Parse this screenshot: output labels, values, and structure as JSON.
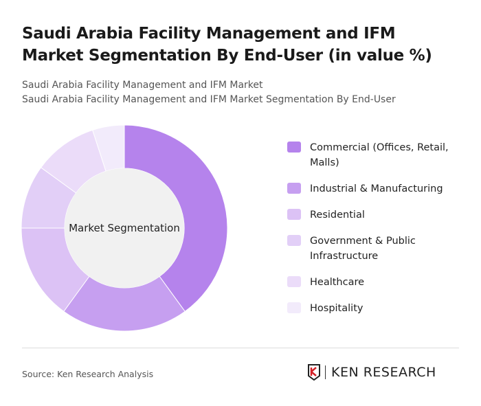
{
  "title": "Saudi Arabia Facility Management and IFM Market Segmentation By End-User (in value %)",
  "subtitle_1": "Saudi Arabia Facility Management and IFM Market",
  "subtitle_2": "Saudi Arabia Facility Management and IFM Market Segmentation By End-User",
  "source": "Source: Ken Research Analysis",
  "logo_text": "KEN RESEARCH",
  "chart_data": {
    "type": "pie",
    "variant": "donut",
    "center_label": "Market Segmentation",
    "legend_position": "right",
    "categories": [
      "Commercial (Offices, Retail, Malls)",
      "Industrial & Manufacturing",
      "Residential",
      "Government & Public Infrastructure",
      "Healthcare",
      "Hospitality"
    ],
    "values": [
      40,
      20,
      15,
      10,
      10,
      5
    ],
    "colors": [
      "#b583ec",
      "#c69ff0",
      "#dcc2f5",
      "#e2cff7",
      "#ebdcf9",
      "#f2ebfb"
    ]
  }
}
